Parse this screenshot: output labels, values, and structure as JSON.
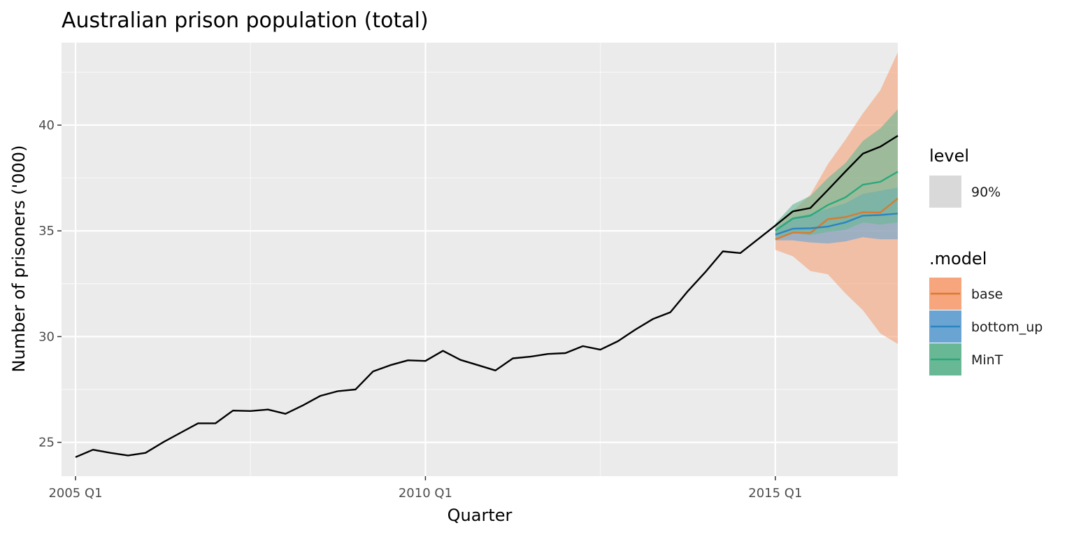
{
  "chart_data": {
    "type": "line",
    "title": "Australian prison population (total)",
    "xlabel": "Quarter",
    "ylabel": "Number of prisoners ('000)",
    "xlim": [
      2004.8,
      2016.75
    ],
    "ylim": [
      23.4,
      43.9
    ],
    "x_ticks": [
      {
        "value": 2005.0,
        "label": "2005 Q1"
      },
      {
        "value": 2010.0,
        "label": "2010 Q1"
      },
      {
        "value": 2015.0,
        "label": "2015 Q1"
      }
    ],
    "x_minor_ticks": [
      2007.5,
      2012.5
    ],
    "y_ticks": [
      {
        "value": 25,
        "label": "25"
      },
      {
        "value": 30,
        "label": "30"
      },
      {
        "value": 35,
        "label": "35"
      },
      {
        "value": 40,
        "label": "40"
      }
    ],
    "y_minor_ticks": [
      27.5,
      32.5,
      37.5,
      42.5
    ],
    "grid": true,
    "legend_position": "right",
    "actual": {
      "color": "#000000",
      "x": [
        2005.0,
        2005.25,
        2005.5,
        2005.75,
        2006.0,
        2006.25,
        2006.5,
        2006.75,
        2007.0,
        2007.25,
        2007.5,
        2007.75,
        2008.0,
        2008.25,
        2008.5,
        2008.75,
        2009.0,
        2009.25,
        2009.5,
        2009.75,
        2010.0,
        2010.25,
        2010.5,
        2010.75,
        2011.0,
        2011.25,
        2011.5,
        2011.75,
        2012.0,
        2012.25,
        2012.5,
        2012.75,
        2013.0,
        2013.25,
        2013.5,
        2013.75,
        2014.0,
        2014.25,
        2014.5,
        2014.75,
        2015.0,
        2015.25,
        2015.5,
        2015.75,
        2016.0,
        2016.25,
        2016.5,
        2016.75
      ],
      "y": [
        24.3,
        24.65,
        24.5,
        24.38,
        24.5,
        25.0,
        25.45,
        25.9,
        25.9,
        26.5,
        26.48,
        26.55,
        26.35,
        26.75,
        27.2,
        27.42,
        27.5,
        28.35,
        28.65,
        28.88,
        28.85,
        29.33,
        28.9,
        28.65,
        28.4,
        28.97,
        29.05,
        29.18,
        29.22,
        29.55,
        29.38,
        29.78,
        30.33,
        30.83,
        31.15,
        32.15,
        33.05,
        34.03,
        33.95,
        34.6,
        35.25,
        35.92,
        36.08,
        36.93,
        37.8,
        38.65,
        38.98,
        39.5
      ]
    },
    "level": {
      "title": "level",
      "items": [
        "90%"
      ]
    },
    "legend_title": ".model",
    "series": [
      {
        "name": "base",
        "color": "#d97b2f",
        "band_color": "#f6a57d",
        "x": [
          2015.0,
          2015.25,
          2015.5,
          2015.75,
          2016.0,
          2016.25,
          2016.5,
          2016.75
        ],
        "y": [
          34.6,
          34.92,
          34.9,
          35.55,
          35.65,
          35.88,
          35.87,
          36.53
        ],
        "lower": [
          34.1,
          33.8,
          33.1,
          32.95,
          32.05,
          31.25,
          30.15,
          29.65
        ],
        "upper": [
          35.1,
          35.95,
          36.7,
          38.15,
          39.3,
          40.55,
          41.65,
          43.45
        ]
      },
      {
        "name": "bottom_up",
        "color": "#2c84c0",
        "band_color": "#6aa4d2",
        "x": [
          2015.0,
          2015.25,
          2015.5,
          2015.75,
          2016.0,
          2016.25,
          2016.5,
          2016.75
        ],
        "y": [
          34.82,
          35.1,
          35.12,
          35.2,
          35.4,
          35.72,
          35.75,
          35.82
        ],
        "lower": [
          34.55,
          34.55,
          34.45,
          34.4,
          34.5,
          34.7,
          34.6,
          34.6
        ],
        "upper": [
          35.1,
          35.65,
          35.8,
          36.05,
          36.3,
          36.75,
          36.9,
          37.05
        ]
      },
      {
        "name": "MinT",
        "color": "#2aa87c",
        "band_color": "#69b895",
        "x": [
          2015.0,
          2015.25,
          2015.5,
          2015.75,
          2016.0,
          2016.25,
          2016.5,
          2016.75
        ],
        "y": [
          35.02,
          35.58,
          35.72,
          36.22,
          36.58,
          37.18,
          37.32,
          37.8
        ],
        "lower": [
          34.7,
          34.9,
          34.8,
          34.95,
          35.05,
          35.4,
          35.3,
          35.4
        ],
        "upper": [
          35.35,
          36.25,
          36.65,
          37.5,
          38.2,
          39.25,
          39.85,
          40.75
        ]
      }
    ]
  }
}
